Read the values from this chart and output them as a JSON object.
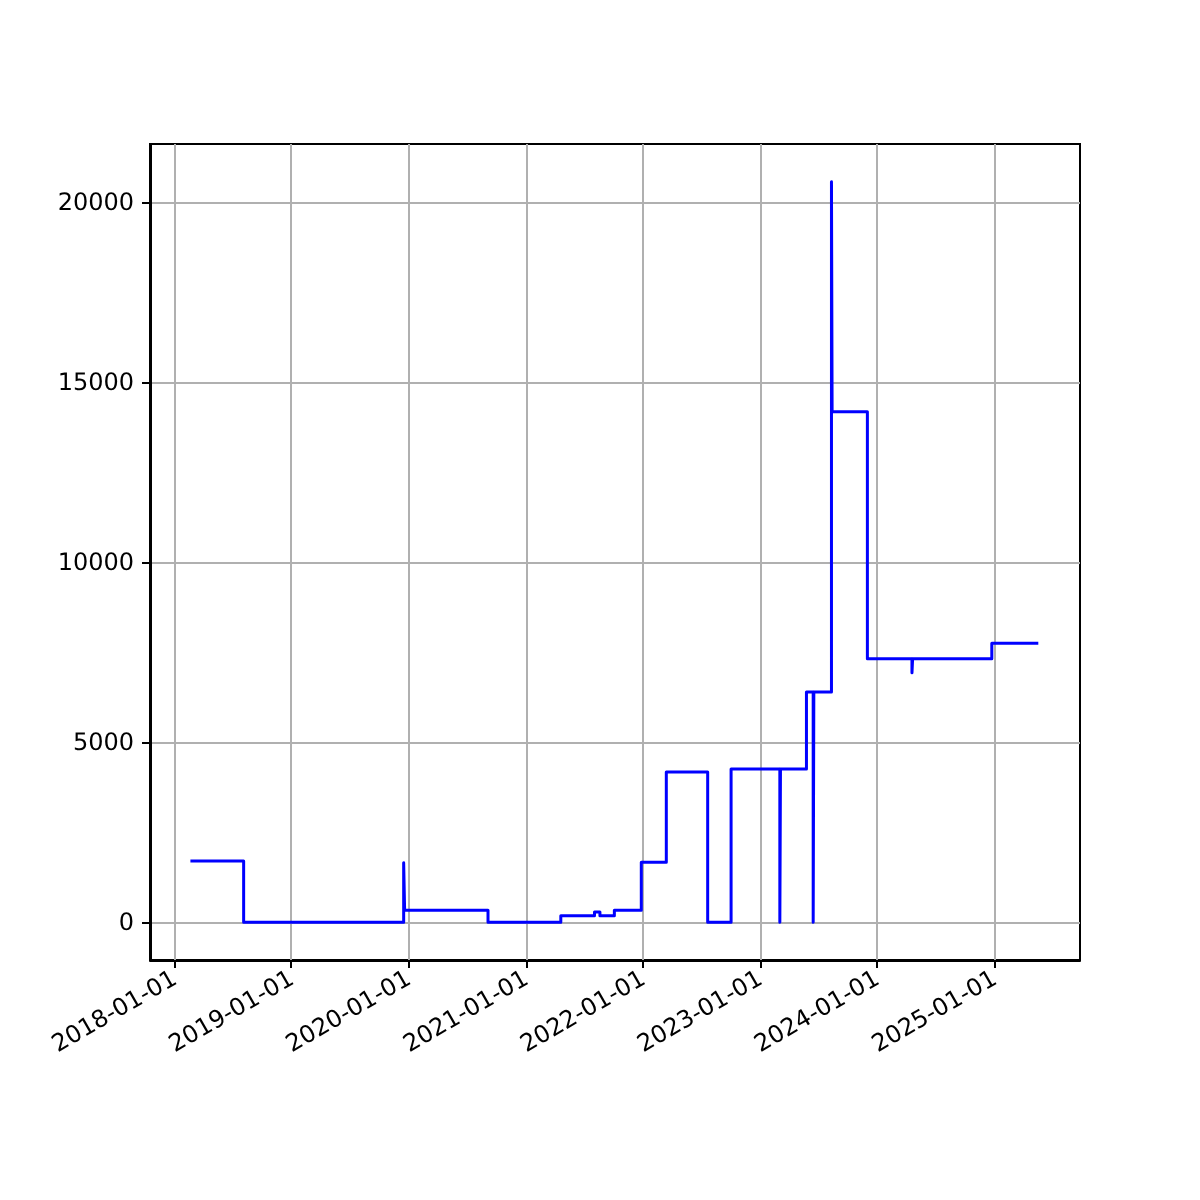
{
  "chart_data": {
    "type": "step",
    "x": [
      "2018-02-20",
      "2018-08-05",
      "2019-12-17",
      "2019-12-20",
      "2020-09-05",
      "2021-04-20",
      "2021-08-03",
      "2021-08-20",
      "2021-10-04",
      "2021-12-27",
      "2022-03-15",
      "2022-07-22",
      "2022-10-03",
      "2023-03-04",
      "2023-03-06",
      "2023-05-26",
      "2023-06-16",
      "2023-06-18",
      "2023-08-12",
      "2023-08-14",
      "2023-12-02",
      "2024-04-19",
      "2024-04-21",
      "2024-12-24",
      "2025-05-18"
    ],
    "series": [
      {
        "color": "#0000ff",
        "values": [
          1700,
          0,
          1650,
          330,
          0,
          180,
          280,
          180,
          330,
          1660,
          4170,
          0,
          4250,
          0,
          4250,
          6390,
          0,
          6390,
          20550,
          14170,
          7310,
          6920,
          7310,
          7740,
          7740
        ]
      }
    ],
    "xlim": [
      "2017-10-17",
      "2025-09-25"
    ],
    "xticks": [
      {
        "value": "2018-01-01",
        "label": "2018-01-01"
      },
      {
        "value": "2019-01-01",
        "label": "2019-01-01"
      },
      {
        "value": "2020-01-01",
        "label": "2020-01-01"
      },
      {
        "value": "2021-01-01",
        "label": "2021-01-01"
      },
      {
        "value": "2022-01-01",
        "label": "2022-01-01"
      },
      {
        "value": "2023-01-01",
        "label": "2023-01-01"
      },
      {
        "value": "2024-01-01",
        "label": "2024-01-01"
      },
      {
        "value": "2025-01-01",
        "label": "2025-01-01"
      }
    ],
    "ylim": [
      -1050,
      21600
    ],
    "yticks": [
      0,
      5000,
      10000,
      15000,
      20000
    ],
    "grid": true,
    "marker": "none",
    "line_style": "solid"
  }
}
